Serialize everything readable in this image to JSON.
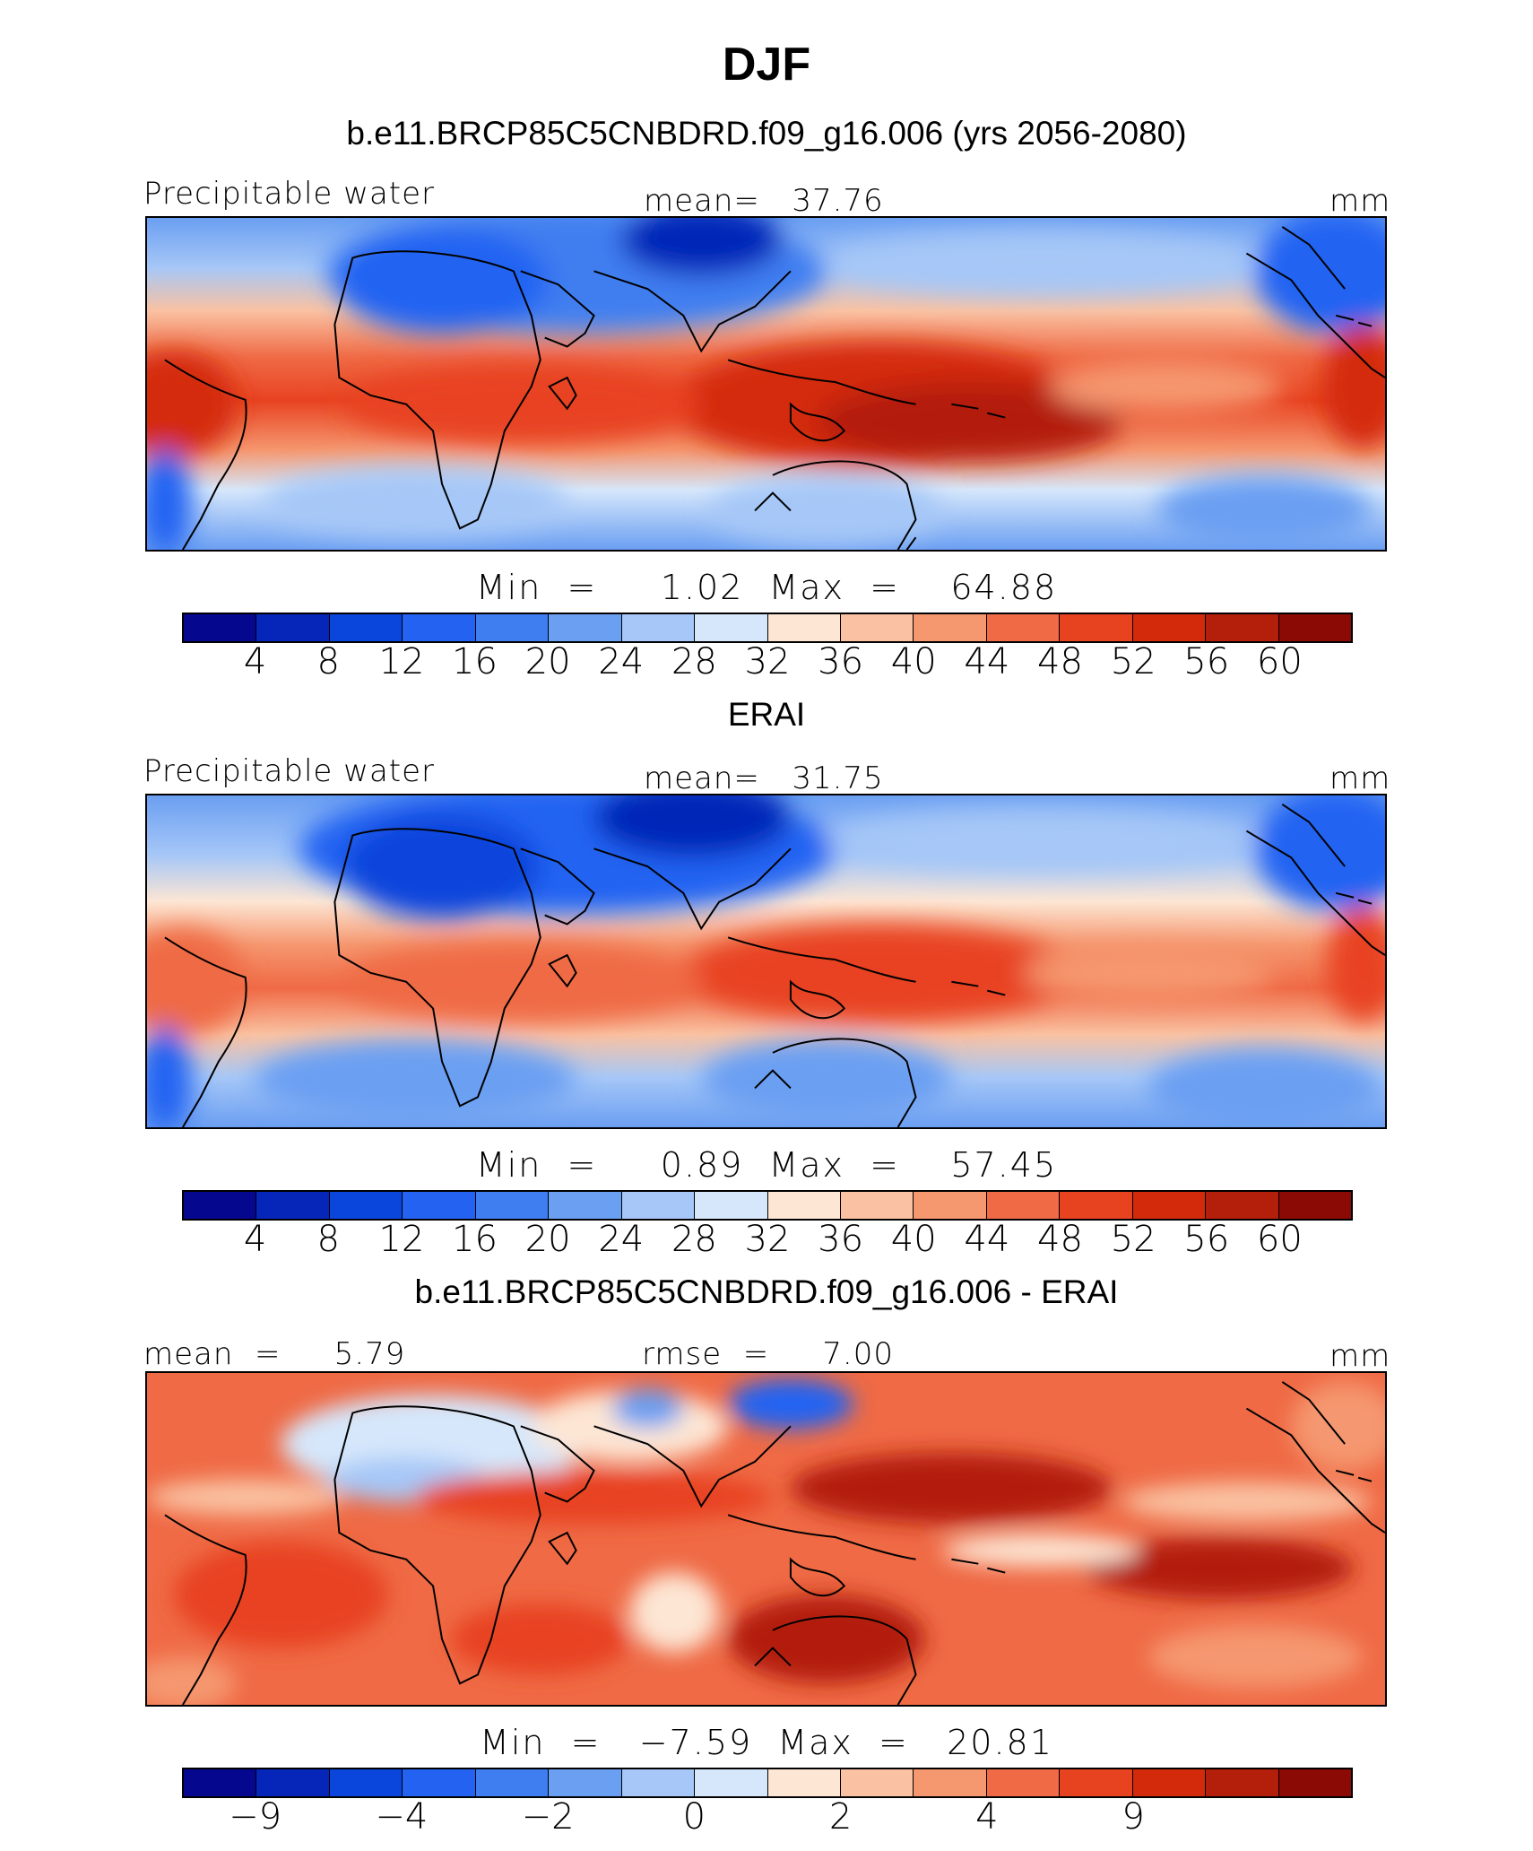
{
  "title": "DJF",
  "palette": [
    "#05078f",
    "#0526b8",
    "#0a45dc",
    "#2463f2",
    "#3f7ef0",
    "#6b9ff2",
    "#a6c7f7",
    "#d6e7fb",
    "#fde6d4",
    "#fac2a2",
    "#f5976f",
    "#ef6a45",
    "#e84321",
    "#d42a0c",
    "#b31f0a",
    "#8b0a05"
  ],
  "panels": [
    {
      "subtitle": "b.e11.BRCP85C5CNBDRD.f09_g16.006 (yrs 2056-2080)",
      "left_label": "Precipitable water",
      "center_label": "mean=   37.76",
      "right_label": "mm",
      "minmax": "Min  =     1.02  Max  =    64.88",
      "colorbar_ticks": [
        "4",
        "8",
        "12",
        "16",
        "20",
        "24",
        "28",
        "32",
        "36",
        "40",
        "44",
        "48",
        "52",
        "56",
        "60"
      ]
    },
    {
      "subtitle": "ERAI",
      "left_label": "Precipitable water",
      "center_label": "mean=   31.75",
      "right_label": "mm",
      "minmax": "Min  =     0.89  Max  =    57.45",
      "colorbar_ticks": [
        "4",
        "8",
        "12",
        "16",
        "20",
        "24",
        "28",
        "32",
        "36",
        "40",
        "44",
        "48",
        "52",
        "56",
        "60"
      ]
    },
    {
      "subtitle": "b.e11.BRCP85C5CNBDRD.f09_g16.006 - ERAI",
      "left_label": "mean  =     5.79",
      "center_label": "rmse  =     7.00",
      "right_label": "mm",
      "minmax": "Min  =   −7.59  Max  =   20.81",
      "colorbar_ticks": [
        "−9",
        "−4",
        "−2",
        "0",
        "2",
        "4",
        "9"
      ]
    }
  ],
  "chart_data": [
    {
      "type": "heatmap",
      "title": "DJF",
      "subtitle": "b.e11.BRCP85C5CNBDRD.f09_g16.006 (yrs 2056-2080)",
      "variable": "Precipitable water",
      "units": "mm",
      "mean": 37.76,
      "min": 1.02,
      "max": 64.88,
      "levels": [
        4,
        8,
        12,
        16,
        20,
        24,
        28,
        32,
        36,
        40,
        44,
        48,
        52,
        56,
        60
      ]
    },
    {
      "type": "heatmap",
      "subtitle": "ERAI",
      "variable": "Precipitable water",
      "units": "mm",
      "mean": 31.75,
      "min": 0.89,
      "max": 57.45,
      "levels": [
        4,
        8,
        12,
        16,
        20,
        24,
        28,
        32,
        36,
        40,
        44,
        48,
        52,
        56,
        60
      ]
    },
    {
      "type": "heatmap",
      "subtitle": "b.e11.BRCP85C5CNBDRD.f09_g16.006 - ERAI",
      "units": "mm",
      "mean": 5.79,
      "rmse": 7.0,
      "min": -7.59,
      "max": 20.81,
      "levels": [
        -9,
        -6,
        -4,
        -3,
        -2,
        -1,
        0,
        1,
        2,
        3,
        4,
        6,
        9
      ],
      "labelled_levels": [
        -9,
        -4,
        -2,
        0,
        2,
        4,
        9
      ]
    }
  ]
}
